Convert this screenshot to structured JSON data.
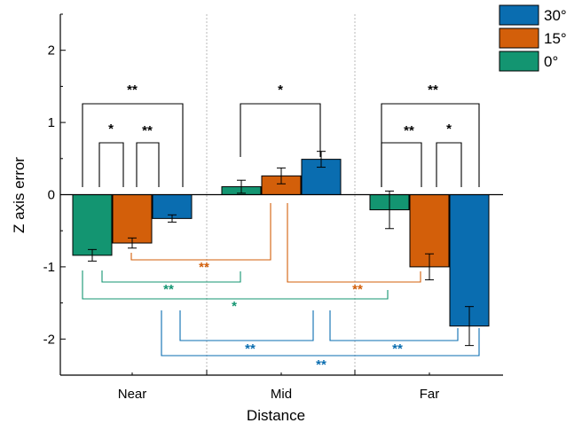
{
  "colors": {
    "0°": "#139571",
    "15°": "#d35f0a",
    "30°": "#0a6db0",
    "axis": "#000000",
    "divider": "#b8b8b8"
  },
  "chart_data": {
    "type": "bar",
    "xlabel": "Distance",
    "ylabel": "Z axis error",
    "categories": [
      "Near",
      "Mid",
      "Far"
    ],
    "ylim": [
      -2.5,
      2.5
    ],
    "yticks": [
      -2,
      -1,
      0,
      1,
      2
    ],
    "ytick_labels": [
      "-2",
      "-1",
      "0",
      "1",
      "2"
    ],
    "legend_position": "top-right",
    "legend_order": [
      "30°",
      "15°",
      "0°"
    ],
    "series": [
      {
        "name": "0°",
        "values": [
          -0.84,
          0.11,
          -0.21
        ],
        "errors": [
          0.08,
          0.09,
          0.26
        ]
      },
      {
        "name": "15°",
        "values": [
          -0.67,
          0.26,
          -1.0
        ],
        "errors": [
          0.07,
          0.11,
          0.18
        ]
      },
      {
        "name": "30°",
        "values": [
          -0.33,
          0.49,
          -1.82
        ],
        "errors": [
          0.05,
          0.11,
          0.27
        ]
      }
    ],
    "significance": [
      {
        "group": "within-Near",
        "pair": [
          "0°",
          "15°"
        ],
        "label": "*",
        "color": "#000000"
      },
      {
        "group": "within-Near",
        "pair": [
          "15°",
          "30°"
        ],
        "label": "**",
        "color": "#000000"
      },
      {
        "group": "within-Near",
        "pair": [
          "0°",
          "30°"
        ],
        "label": "**",
        "color": "#000000"
      },
      {
        "group": "within-Mid",
        "pair": [
          "0°",
          "30°"
        ],
        "label": "*",
        "color": "#000000"
      },
      {
        "group": "within-Far",
        "pair": [
          "0°",
          "15°"
        ],
        "label": "**",
        "color": "#000000"
      },
      {
        "group": "within-Far",
        "pair": [
          "15°",
          "30°"
        ],
        "label": "*",
        "color": "#000000"
      },
      {
        "group": "within-Far",
        "pair": [
          "0°",
          "30°"
        ],
        "label": "**",
        "color": "#000000"
      },
      {
        "group": "15°",
        "pair": [
          "Near",
          "Mid"
        ],
        "label": "**",
        "color": "#d35f0a"
      },
      {
        "group": "15°",
        "pair": [
          "Mid",
          "Far"
        ],
        "label": "**",
        "color": "#d35f0a"
      },
      {
        "group": "0°",
        "pair": [
          "Near",
          "Mid"
        ],
        "label": "**",
        "color": "#139571"
      },
      {
        "group": "0°",
        "pair": [
          "Near",
          "Far"
        ],
        "label": "*",
        "color": "#139571"
      },
      {
        "group": "30°",
        "pair": [
          "Near",
          "Mid"
        ],
        "label": "**",
        "color": "#0a6db0"
      },
      {
        "group": "30°",
        "pair": [
          "Mid",
          "Far"
        ],
        "label": "**",
        "color": "#0a6db0"
      },
      {
        "group": "30°",
        "pair": [
          "Near",
          "Far"
        ],
        "label": "**",
        "color": "#0a6db0"
      }
    ]
  }
}
